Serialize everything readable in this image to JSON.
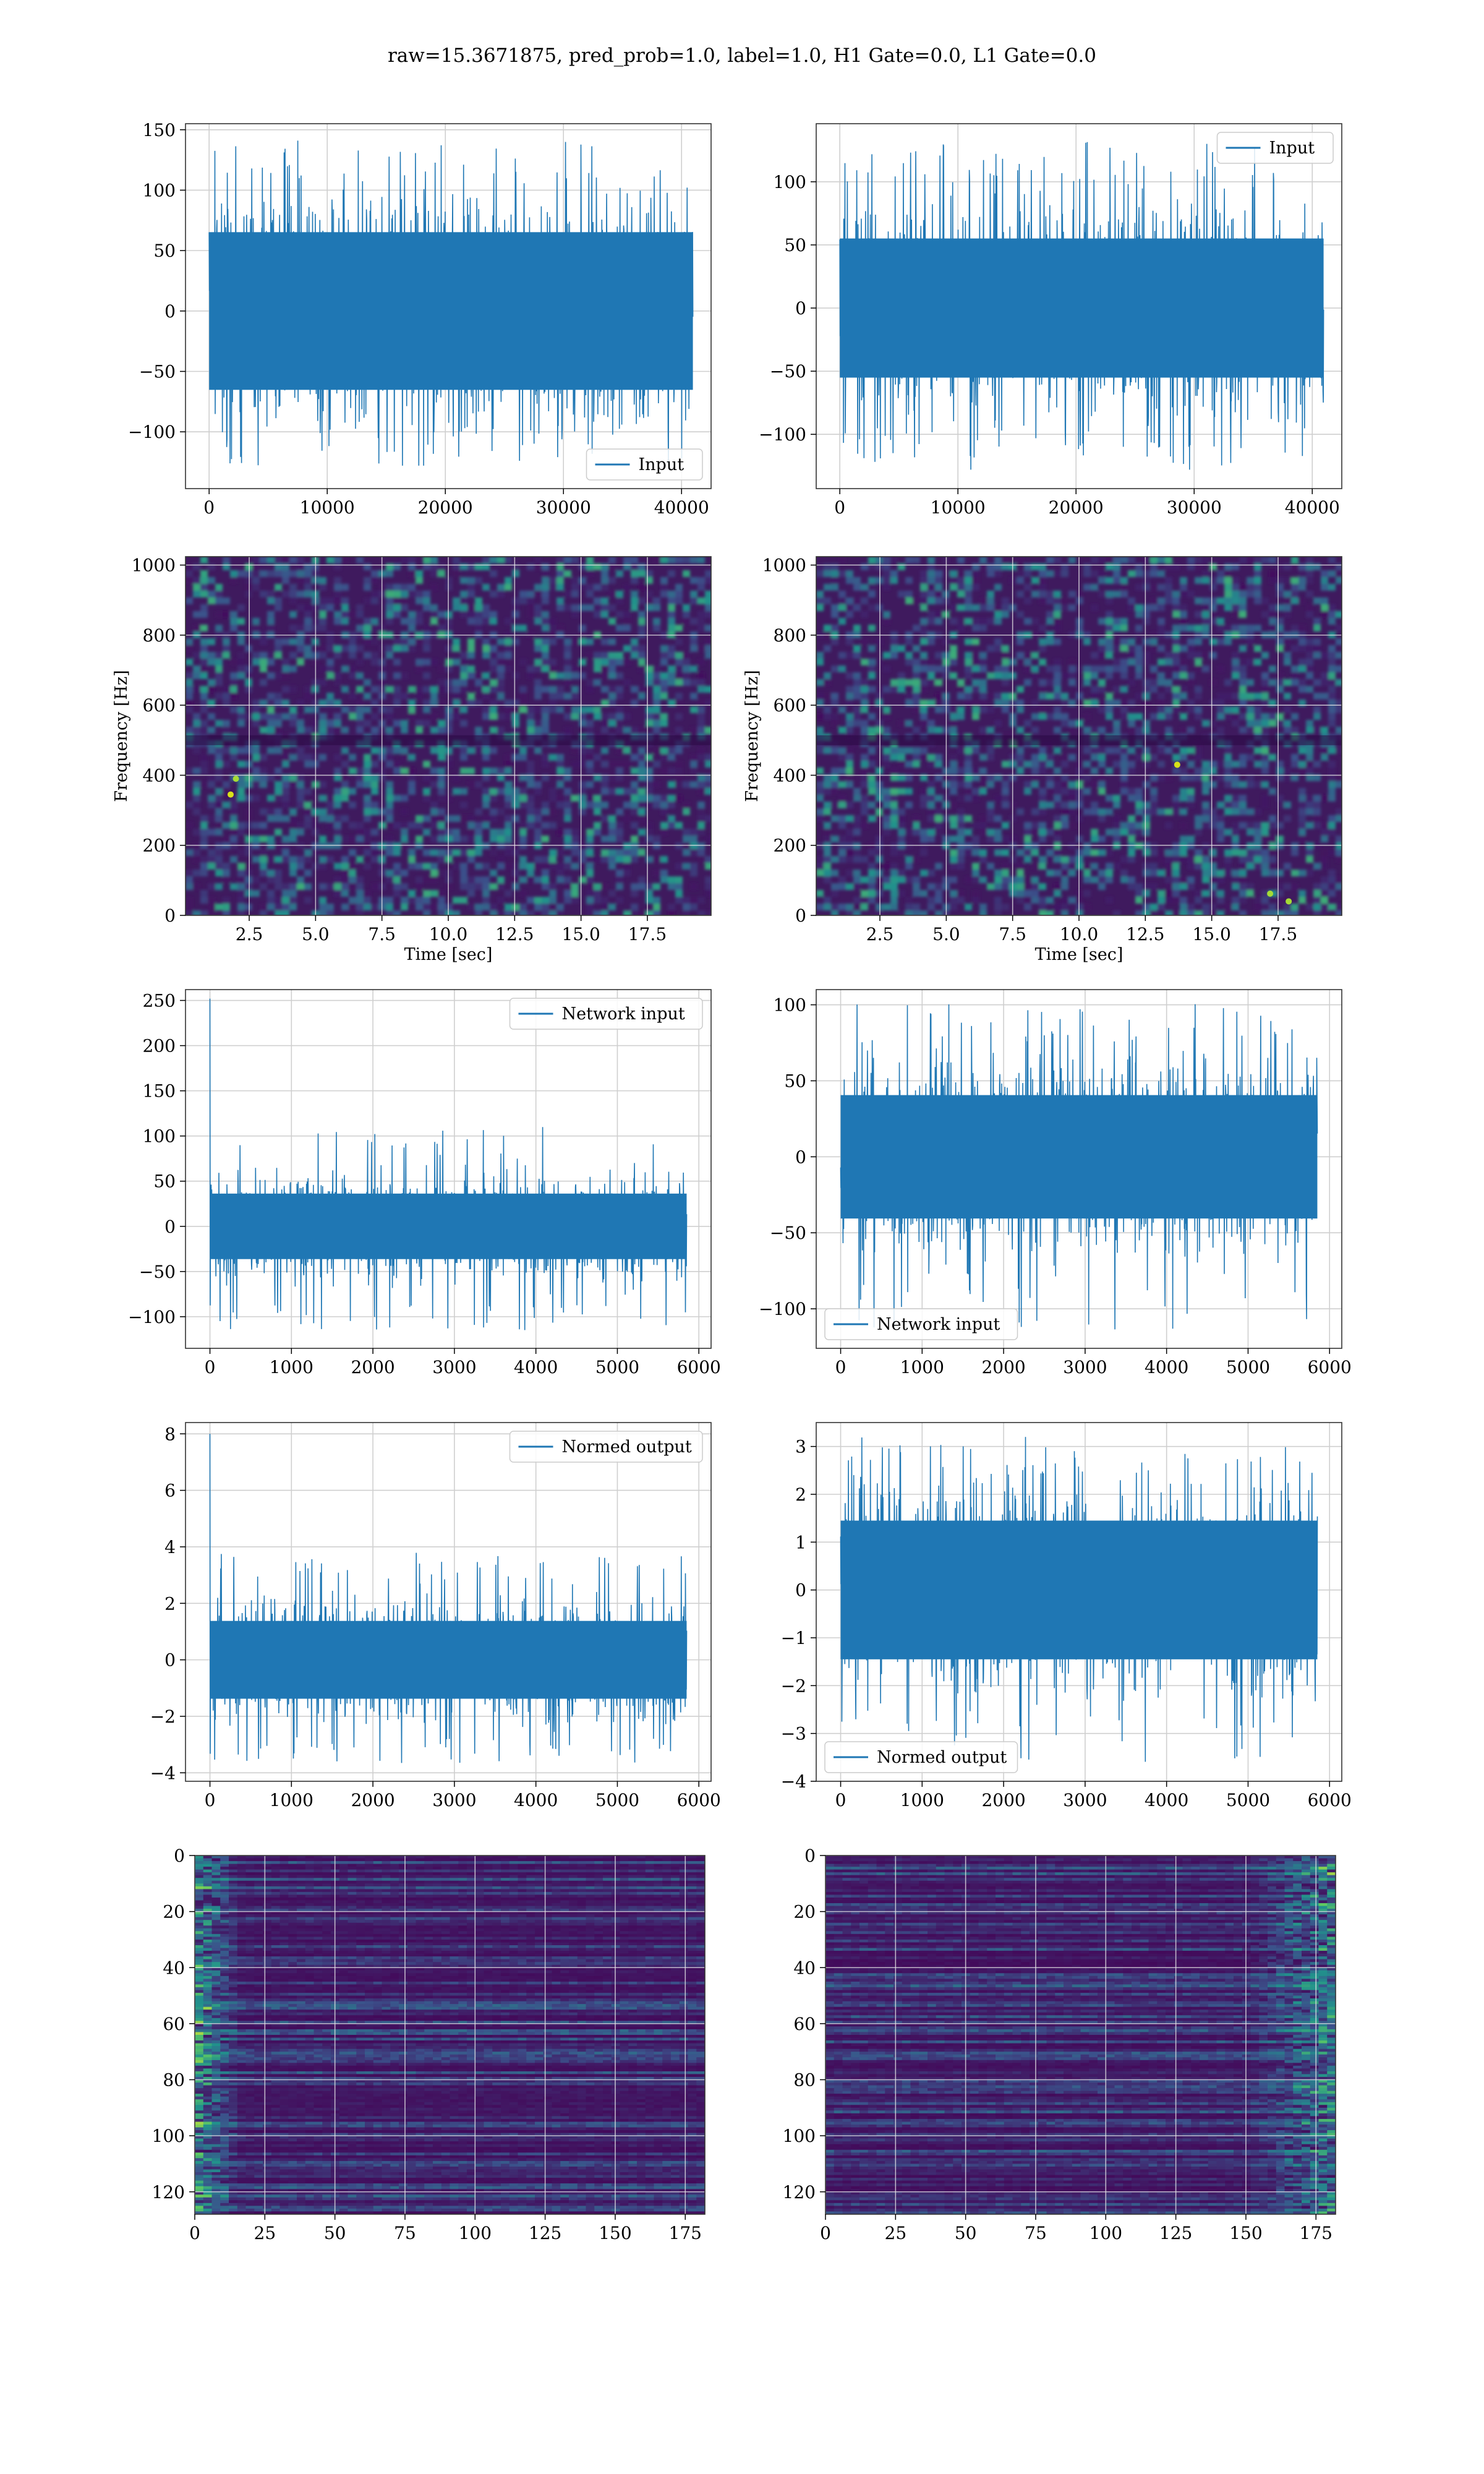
{
  "figure": {
    "suptitle": "raw=15.3671875, pred_prob=1.0, label=1.0, H1 Gate=0.0, L1 Gate=0.0",
    "colors": {
      "line": "#1f77b4",
      "grid": "#cfcfcf",
      "viridis_dark": "#3b0f54"
    }
  },
  "chart_data": [
    {
      "id": "p1",
      "type": "line",
      "series": [
        {
          "name": "Input",
          "x_range": [
            0,
            40960
          ],
          "amplitude": 45,
          "peak_range": [
            -128,
            141
          ]
        }
      ],
      "xlim": [
        -2000,
        42500
      ],
      "ylim": [
        -147,
        155
      ],
      "xticks": [
        0,
        10000,
        20000,
        30000,
        40000
      ],
      "xtick_labels": [
        "0",
        "10000",
        "20000",
        "30000",
        "40000"
      ],
      "yticks": [
        -100,
        -50,
        0,
        50,
        100,
        150
      ],
      "ytick_labels": [
        "−100",
        "−50",
        "0",
        "50",
        "100",
        "150"
      ],
      "legend": "lower-right",
      "grid": true
    },
    {
      "id": "p2",
      "type": "line",
      "series": [
        {
          "name": "Input",
          "x_range": [
            0,
            40960
          ],
          "amplitude": 38,
          "peak_range": [
            -128,
            133
          ]
        }
      ],
      "xlim": [
        -2000,
        42500
      ],
      "ylim": [
        -143,
        146
      ],
      "xticks": [
        0,
        10000,
        20000,
        30000,
        40000
      ],
      "xtick_labels": [
        "0",
        "10000",
        "20000",
        "30000",
        "40000"
      ],
      "yticks": [
        -100,
        -50,
        0,
        50,
        100
      ],
      "ytick_labels": [
        "−100",
        "−50",
        "0",
        "50",
        "100"
      ],
      "legend": "upper-right",
      "grid": true
    },
    {
      "id": "p3",
      "type": "heatmap",
      "xlabel": "Time [sec]",
      "ylabel": "Frequency [Hz]",
      "xlim": [
        0.1,
        19.9
      ],
      "ylim": [
        0,
        1024
      ],
      "xticks": [
        2.5,
        5,
        7.5,
        10,
        12.5,
        15,
        17.5
      ],
      "xtick_labels": [
        "2.5",
        "5.0",
        "7.5",
        "10.0",
        "12.5",
        "15.0",
        "17.5"
      ],
      "yticks": [
        0,
        200,
        400,
        600,
        800,
        1000
      ],
      "ytick_labels": [
        "0",
        "200",
        "400",
        "600",
        "800",
        "1000"
      ],
      "hot_spots": [
        [
          1.8,
          345
        ],
        [
          2.0,
          390
        ]
      ],
      "grid": true
    },
    {
      "id": "p4",
      "type": "heatmap",
      "xlabel": "Time [sec]",
      "ylabel": "Frequency [Hz]",
      "xlim": [
        0.1,
        19.9
      ],
      "ylim": [
        0,
        1024
      ],
      "xticks": [
        2.5,
        5,
        7.5,
        10,
        12.5,
        15,
        17.5
      ],
      "xtick_labels": [
        "2.5",
        "5.0",
        "7.5",
        "10.0",
        "12.5",
        "15.0",
        "17.5"
      ],
      "yticks": [
        0,
        200,
        400,
        600,
        800,
        1000
      ],
      "ytick_labels": [
        "0",
        "200",
        "400",
        "600",
        "800",
        "1000"
      ],
      "hot_spots": [
        [
          13.7,
          430
        ],
        [
          17.9,
          40
        ],
        [
          17.2,
          62
        ]
      ],
      "grid": true
    },
    {
      "id": "p5",
      "type": "line",
      "series": [
        {
          "name": "Network input",
          "x_range": [
            0,
            5850
          ],
          "amplitude": 25,
          "spike": [
            0,
            252
          ],
          "peak_range": [
            -115,
            115
          ]
        }
      ],
      "xlim": [
        -300,
        6150
      ],
      "ylim": [
        -135,
        262
      ],
      "xticks": [
        0,
        1000,
        2000,
        3000,
        4000,
        5000,
        6000
      ],
      "xtick_labels": [
        "0",
        "1000",
        "2000",
        "3000",
        "4000",
        "5000",
        "6000"
      ],
      "yticks": [
        -100,
        -50,
        0,
        50,
        100,
        150,
        200,
        250
      ],
      "ytick_labels": [
        "−100",
        "−50",
        "0",
        "50",
        "100",
        "150",
        "200",
        "250"
      ],
      "legend": "upper-right",
      "grid": true
    },
    {
      "id": "p6",
      "type": "line",
      "series": [
        {
          "name": "Network input",
          "x_range": [
            0,
            5850
          ],
          "amplitude": 28,
          "peak_range": [
            -115,
            101
          ]
        }
      ],
      "xlim": [
        -300,
        6150
      ],
      "ylim": [
        -126,
        110
      ],
      "xticks": [
        0,
        1000,
        2000,
        3000,
        4000,
        5000,
        6000
      ],
      "xtick_labels": [
        "0",
        "1000",
        "2000",
        "3000",
        "4000",
        "5000",
        "6000"
      ],
      "yticks": [
        -100,
        -50,
        0,
        50,
        100
      ],
      "ytick_labels": [
        "−100",
        "−50",
        "0",
        "50",
        "100"
      ],
      "legend": "lower-left",
      "grid": true
    },
    {
      "id": "p7",
      "type": "line",
      "series": [
        {
          "name": "Normed output",
          "x_range": [
            0,
            5850
          ],
          "amplitude": 0.95,
          "spike": [
            0,
            8.0
          ],
          "peak_range": [
            -3.7,
            3.8
          ]
        }
      ],
      "xlim": [
        -300,
        6150
      ],
      "ylim": [
        -4.3,
        8.4
      ],
      "xticks": [
        0,
        1000,
        2000,
        3000,
        4000,
        5000,
        6000
      ],
      "xtick_labels": [
        "0",
        "1000",
        "2000",
        "3000",
        "4000",
        "5000",
        "6000"
      ],
      "yticks": [
        -4,
        -2,
        0,
        2,
        4,
        6,
        8
      ],
      "ytick_labels": [
        "−4",
        "−2",
        "0",
        "2",
        "4",
        "6",
        "8"
      ],
      "legend": "upper-right",
      "grid": true
    },
    {
      "id": "p8",
      "type": "line",
      "series": [
        {
          "name": "Normed output",
          "x_range": [
            0,
            5850
          ],
          "amplitude": 1.0,
          "peak_range": [
            -3.6,
            3.2
          ]
        }
      ],
      "xlim": [
        -300,
        6150
      ],
      "ylim": [
        -4.0,
        3.5
      ],
      "xticks": [
        0,
        1000,
        2000,
        3000,
        4000,
        5000,
        6000
      ],
      "xtick_labels": [
        "0",
        "1000",
        "2000",
        "3000",
        "4000",
        "5000",
        "6000"
      ],
      "yticks": [
        -4,
        -3,
        -2,
        -1,
        0,
        1,
        2,
        3
      ],
      "ytick_labels": [
        "−4",
        "−3",
        "−2",
        "−1",
        "0",
        "1",
        "2",
        "3"
      ],
      "legend": "lower-left",
      "grid": true
    },
    {
      "id": "p9",
      "type": "heatmap",
      "xlim": [
        0,
        182
      ],
      "ylim": [
        128,
        0
      ],
      "xticks": [
        0,
        25,
        50,
        75,
        100,
        125,
        150,
        175
      ],
      "xtick_labels": [
        "0",
        "25",
        "50",
        "75",
        "100",
        "125",
        "150",
        "175"
      ],
      "yticks": [
        0,
        20,
        40,
        60,
        80,
        100,
        120
      ],
      "ytick_labels": [
        "0",
        "20",
        "40",
        "60",
        "80",
        "100",
        "120"
      ],
      "bright_side": "left",
      "grid": true
    },
    {
      "id": "p10",
      "type": "heatmap",
      "xlim": [
        0,
        182
      ],
      "ylim": [
        128,
        0
      ],
      "xticks": [
        0,
        25,
        50,
        75,
        100,
        125,
        150,
        175
      ],
      "xtick_labels": [
        "0",
        "25",
        "50",
        "75",
        "100",
        "125",
        "150",
        "175"
      ],
      "yticks": [
        0,
        20,
        40,
        60,
        80,
        100,
        120
      ],
      "ytick_labels": [
        "0",
        "20",
        "40",
        "60",
        "80",
        "100",
        "120"
      ],
      "bright_side": "right",
      "grid": true
    }
  ]
}
